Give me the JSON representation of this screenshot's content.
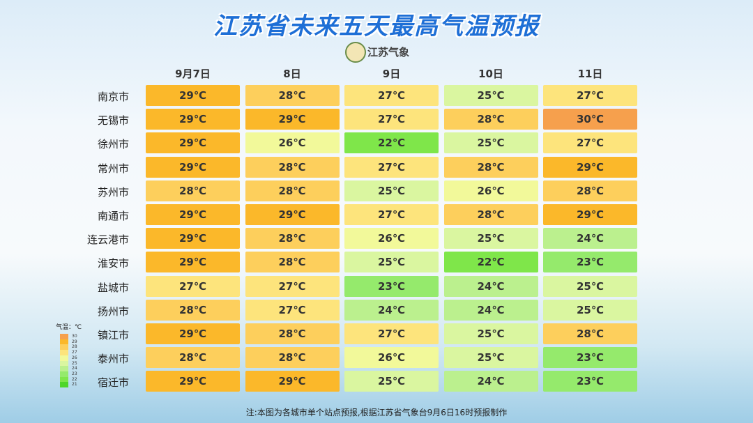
{
  "header": {
    "title": "江苏省未来五天最高气温预报",
    "logo": "江苏气象"
  },
  "table": {
    "columns": [
      "9月7日",
      "8日",
      "9日",
      "10日",
      "11日"
    ],
    "rows": [
      {
        "city": "南京市",
        "cells": [
          "29℃",
          "28℃",
          "27℃",
          "25℃",
          "27℃"
        ]
      },
      {
        "city": "无锡市",
        "cells": [
          "29℃",
          "29℃",
          "27℃",
          "28℃",
          "30℃"
        ]
      },
      {
        "city": "徐州市",
        "cells": [
          "29℃",
          "26℃",
          "22℃",
          "25℃",
          "27℃"
        ]
      },
      {
        "city": "常州市",
        "cells": [
          "29℃",
          "28℃",
          "27℃",
          "28℃",
          "29℃"
        ]
      },
      {
        "city": "苏州市",
        "cells": [
          "28℃",
          "28℃",
          "25℃",
          "26℃",
          "28℃"
        ]
      },
      {
        "city": "南通市",
        "cells": [
          "29℃",
          "29℃",
          "27℃",
          "28℃",
          "29℃"
        ]
      },
      {
        "city": "连云港市",
        "cells": [
          "29℃",
          "28℃",
          "26℃",
          "25℃",
          "24℃"
        ]
      },
      {
        "city": "淮安市",
        "cells": [
          "29℃",
          "28℃",
          "25℃",
          "22℃",
          "23℃"
        ]
      },
      {
        "city": "盐城市",
        "cells": [
          "27℃",
          "27℃",
          "23℃",
          "24℃",
          "25℃"
        ]
      },
      {
        "city": "扬州市",
        "cells": [
          "28℃",
          "27℃",
          "24℃",
          "24℃",
          "25℃"
        ]
      },
      {
        "city": "镇江市",
        "cells": [
          "29℃",
          "28℃",
          "27℃",
          "25℃",
          "28℃"
        ]
      },
      {
        "city": "泰州市",
        "cells": [
          "28℃",
          "28℃",
          "26℃",
          "25℃",
          "23℃"
        ]
      },
      {
        "city": "宿迁市",
        "cells": [
          "29℃",
          "29℃",
          "25℃",
          "24℃",
          "23℃"
        ]
      }
    ]
  },
  "legend": {
    "title": "气温：℃",
    "items": [
      {
        "label": "30",
        "color": "#f6a04d"
      },
      {
        "label": "29",
        "color": "#fbb82a"
      },
      {
        "label": "28",
        "color": "#fdcf5c"
      },
      {
        "label": "27",
        "color": "#fde47c"
      },
      {
        "label": "26",
        "color": "#f2f99a"
      },
      {
        "label": "25",
        "color": "#daf6a0"
      },
      {
        "label": "24",
        "color": "#bbf08e"
      },
      {
        "label": "23",
        "color": "#95ea6c"
      },
      {
        "label": "22",
        "color": "#7fe64a"
      },
      {
        "label": "21",
        "color": "#4ed62a"
      }
    ]
  },
  "footnote": "注:本图为各城市单个站点预报,根据江苏省气象台9月6日16时预报制作"
}
